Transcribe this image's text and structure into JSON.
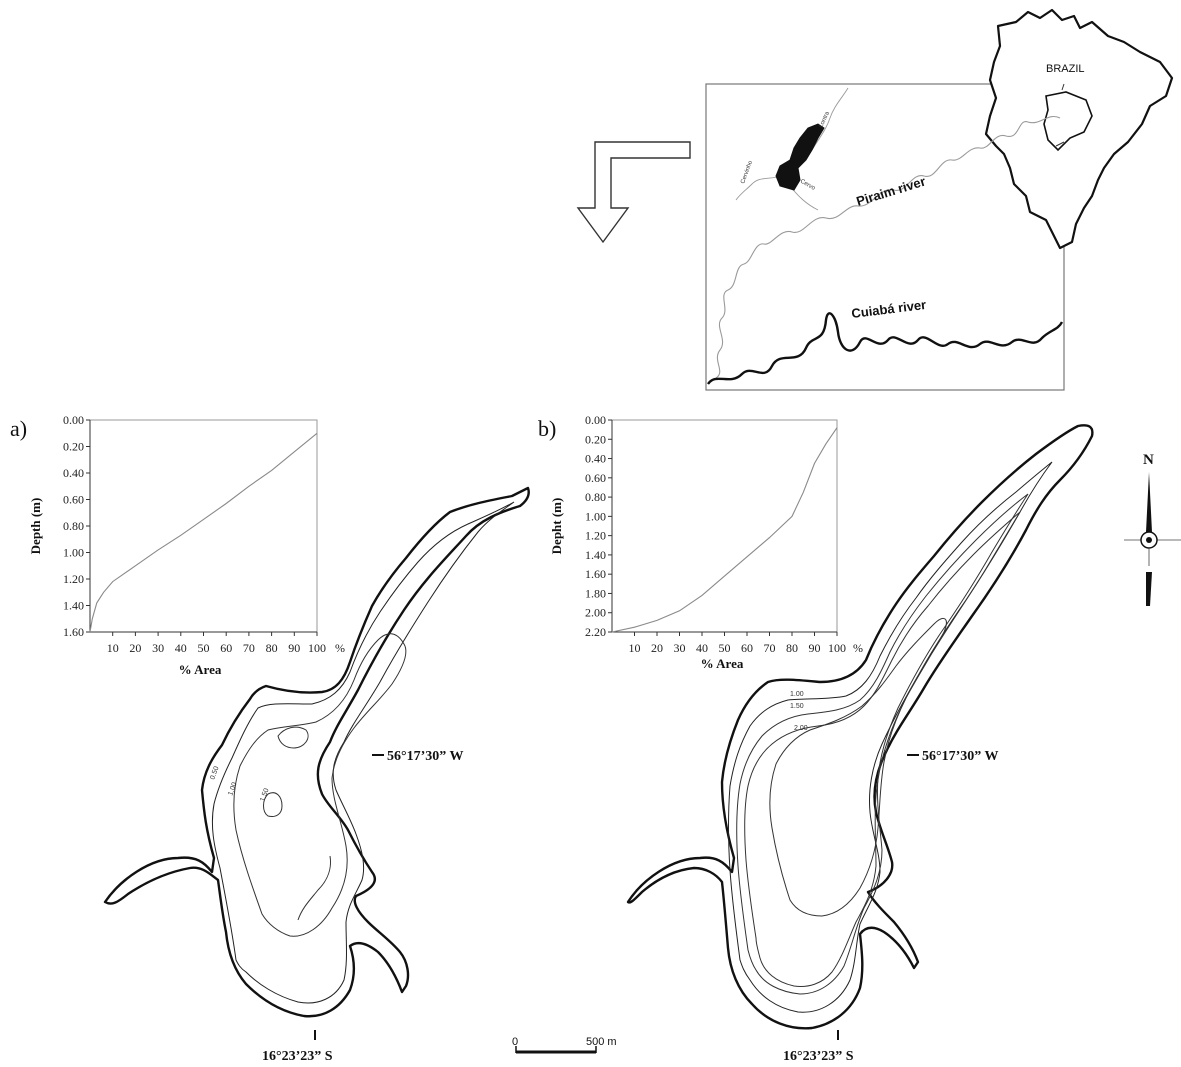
{
  "panels": {
    "a": "a)",
    "b": "b)"
  },
  "inset": {
    "country": "BRAZIL",
    "rivers": {
      "piraim": "Piraim river",
      "cuiaba": "Cuiabá river"
    },
    "streams": {
      "lontra": "Lontra",
      "cervinho": "Cervinho",
      "cervo": "Cervo"
    }
  },
  "coordinates": {
    "longitude": "56°17’30” W",
    "latitude": "16°23’23” S"
  },
  "north": "N",
  "scalebar": {
    "zero": "0",
    "end": "500 m"
  },
  "contours_a": [
    "0.50",
    "1.00",
    "1.50"
  ],
  "contours_b": [
    "1.00",
    "1.50",
    "2.00"
  ],
  "chart_data": [
    {
      "type": "line",
      "panel": "a",
      "xlabel": "% Area",
      "ylabel": "Depth (m)",
      "xticks": [
        "10",
        "20",
        "30",
        "40",
        "50",
        "60",
        "70",
        "80",
        "90",
        "100"
      ],
      "x_unit": "%",
      "yticks": [
        "0.00",
        "0.20",
        "0.40",
        "0.60",
        "0.80",
        "1.00",
        "1.20",
        "1.40",
        "1.60"
      ],
      "xlim": [
        0,
        100
      ],
      "ylim": [
        0,
        1.6
      ],
      "y_inverted": true,
      "grid": false,
      "series": [
        {
          "x": [
            0,
            1,
            3,
            6,
            10,
            20,
            30,
            40,
            50,
            60,
            70,
            80,
            90,
            100
          ],
          "y": [
            1.6,
            1.5,
            1.38,
            1.3,
            1.22,
            1.1,
            0.98,
            0.87,
            0.75,
            0.63,
            0.5,
            0.38,
            0.24,
            0.1
          ]
        }
      ]
    },
    {
      "type": "line",
      "panel": "b",
      "xlabel": "% Area",
      "ylabel": "Depht (m)",
      "xticks": [
        "10",
        "20",
        "30",
        "40",
        "50",
        "60",
        "70",
        "80",
        "90",
        "100"
      ],
      "x_unit": "%",
      "yticks": [
        "0.00",
        "0.20",
        "0.40",
        "0.60",
        "0.80",
        "1.00",
        "1.20",
        "1.40",
        "1.60",
        "1.80",
        "2.00",
        "2.20"
      ],
      "xlim": [
        0,
        100
      ],
      "ylim": [
        0,
        2.2
      ],
      "y_inverted": true,
      "grid": false,
      "series": [
        {
          "x": [
            0,
            10,
            20,
            30,
            40,
            50,
            60,
            70,
            80,
            85,
            90,
            95,
            100
          ],
          "y": [
            2.2,
            2.15,
            2.08,
            1.98,
            1.82,
            1.62,
            1.42,
            1.22,
            1.0,
            0.75,
            0.45,
            0.25,
            0.08
          ]
        }
      ]
    }
  ]
}
